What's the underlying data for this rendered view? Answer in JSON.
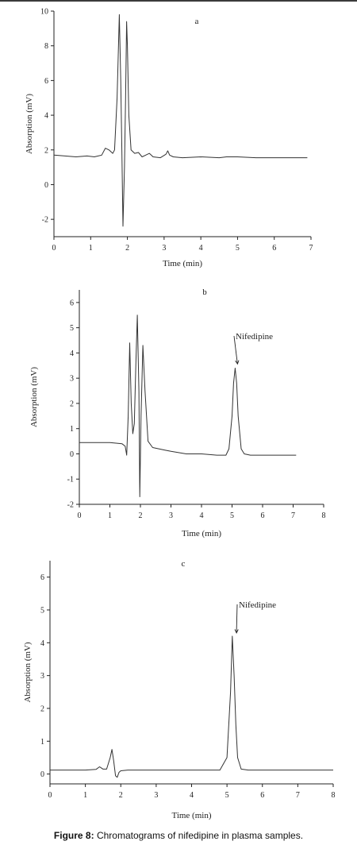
{
  "caption": {
    "label": "Figure 8:",
    "text": "Chromatograms of nifedipine in plasma samples."
  },
  "chart_data": [
    {
      "type": "line",
      "panel_label": "a",
      "xlabel": "Time (min)",
      "ylabel": "Absorption (mV)",
      "xlim": [
        0,
        7
      ],
      "ylim": [
        -3,
        10
      ],
      "xticks": [
        0,
        1,
        2,
        3,
        4,
        5,
        6,
        7
      ],
      "yticks": [
        -2,
        0,
        2,
        4,
        6,
        8,
        10
      ],
      "series": [
        {
          "x": [
            0.0,
            0.3,
            0.6,
            0.9,
            1.1,
            1.3,
            1.4,
            1.5,
            1.6,
            1.65,
            1.72,
            1.78,
            1.82,
            1.85,
            1.88,
            1.92,
            1.95,
            1.98,
            2.0,
            2.04,
            2.1,
            2.2,
            2.3,
            2.4,
            2.5,
            2.6,
            2.7,
            2.9,
            3.05,
            3.1,
            3.15,
            3.25,
            3.5,
            4.0,
            4.5,
            4.7,
            5.0,
            5.5,
            6.0,
            6.5,
            6.9
          ],
          "y": [
            1.7,
            1.65,
            1.6,
            1.65,
            1.6,
            1.7,
            2.1,
            2.0,
            1.8,
            2.0,
            5.0,
            9.8,
            6.0,
            2.0,
            -2.4,
            1.0,
            5.0,
            9.4,
            8.0,
            4.0,
            2.0,
            1.8,
            1.85,
            1.6,
            1.7,
            1.8,
            1.6,
            1.55,
            1.75,
            1.95,
            1.7,
            1.6,
            1.55,
            1.6,
            1.55,
            1.6,
            1.6,
            1.55,
            1.55,
            1.55,
            1.55
          ]
        }
      ]
    },
    {
      "type": "line",
      "panel_label": "b",
      "xlabel": "Time (min)",
      "ylabel": "Absorption (mV)",
      "xlim": [
        0,
        8
      ],
      "ylim": [
        -2,
        6.5
      ],
      "xticks": [
        0,
        1,
        2,
        3,
        4,
        5,
        6,
        7,
        8
      ],
      "yticks": [
        -2,
        -1,
        0,
        1,
        2,
        3,
        4,
        5,
        6
      ],
      "annotation": "Nifedipine",
      "series": [
        {
          "x": [
            0.0,
            0.5,
            1.0,
            1.4,
            1.5,
            1.55,
            1.6,
            1.65,
            1.7,
            1.75,
            1.8,
            1.85,
            1.9,
            1.95,
            1.98,
            2.02,
            2.08,
            2.15,
            2.25,
            2.4,
            2.6,
            2.8,
            3.0,
            3.5,
            4.0,
            4.5,
            4.8,
            4.9,
            5.0,
            5.05,
            5.1,
            5.15,
            5.2,
            5.3,
            5.4,
            5.6,
            6.0,
            6.5,
            7.1
          ],
          "y": [
            0.45,
            0.45,
            0.45,
            0.4,
            0.3,
            -0.05,
            1.5,
            4.4,
            2.0,
            0.8,
            1.2,
            3.5,
            5.5,
            2.5,
            -1.7,
            1.5,
            4.3,
            2.5,
            0.5,
            0.25,
            0.2,
            0.15,
            0.1,
            0.0,
            0.0,
            -0.05,
            -0.05,
            0.2,
            1.5,
            2.8,
            3.4,
            2.8,
            1.5,
            0.2,
            0.0,
            -0.05,
            -0.05,
            -0.05,
            -0.05
          ]
        }
      ]
    },
    {
      "type": "line",
      "panel_label": "c",
      "xlabel": "Time (min)",
      "ylabel": "Absorption (mV)",
      "xlim": [
        0,
        8
      ],
      "ylim": [
        -0.3,
        6.5
      ],
      "xticks": [
        0,
        1,
        2,
        3,
        4,
        5,
        6,
        7,
        8
      ],
      "yticks": [
        0,
        1,
        2,
        3,
        4,
        5,
        6
      ],
      "annotation": "Nifedipine",
      "series": [
        {
          "x": [
            0.0,
            0.5,
            1.0,
            1.3,
            1.4,
            1.5,
            1.6,
            1.7,
            1.75,
            1.8,
            1.85,
            1.9,
            1.95,
            2.0,
            2.2,
            3.0,
            4.0,
            4.8,
            5.0,
            5.1,
            5.15,
            5.2,
            5.25,
            5.3,
            5.4,
            5.6,
            6.0,
            7.0,
            8.0
          ],
          "y": [
            0.12,
            0.12,
            0.12,
            0.14,
            0.22,
            0.15,
            0.15,
            0.5,
            0.75,
            0.4,
            -0.05,
            -0.1,
            0.05,
            0.1,
            0.12,
            0.12,
            0.12,
            0.12,
            0.5,
            2.5,
            4.2,
            3.0,
            1.5,
            0.5,
            0.15,
            0.12,
            0.12,
            0.12,
            0.12
          ]
        }
      ]
    }
  ]
}
